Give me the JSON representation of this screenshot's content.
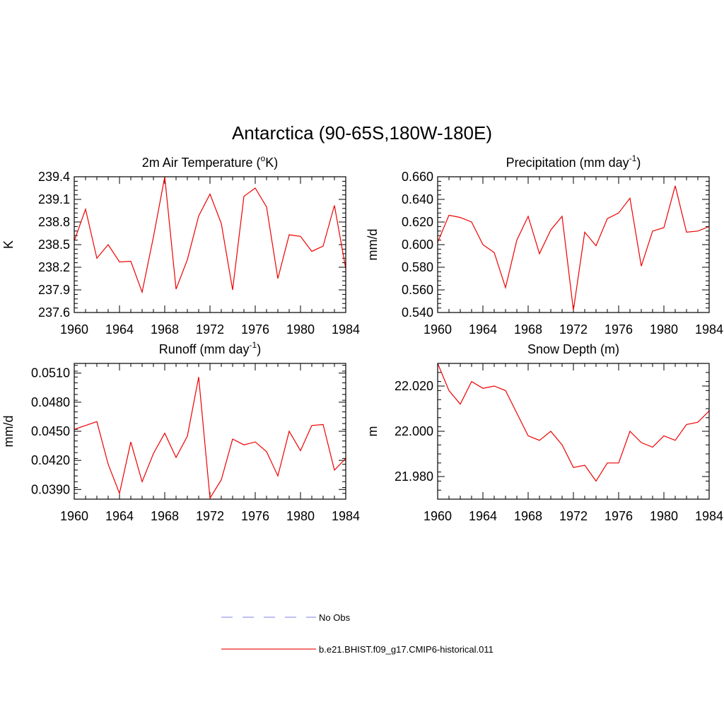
{
  "figure": {
    "title": "Antarctica (90-65S,180W-180E)"
  },
  "legend": {
    "entries": [
      {
        "label": "No Obs",
        "color": "#9999ee",
        "dashed": true
      },
      {
        "label": "b.e21.BHIST.f09_g17.CMIP6-historical.011",
        "color": "#ee2222",
        "dashed": false
      }
    ]
  },
  "chart_data": [
    {
      "type": "line",
      "title": "2m Air Temperature (oK)",
      "title_parts": {
        "base": "2m Air Temperature (",
        "sup": "o",
        "post": "K)"
      },
      "ylabel": "K",
      "xlim": [
        1960,
        1984
      ],
      "ylim": [
        237.6,
        239.4
      ],
      "xticks": [
        "1960",
        "1964",
        "1968",
        "1972",
        "1976",
        "1980",
        "1984"
      ],
      "yticks": [
        "237.6",
        "237.9",
        "238.2",
        "238.5",
        "238.8",
        "239.1",
        "239.4"
      ],
      "series": [
        {
          "color": "#ee0000",
          "x": [
            1960,
            1961,
            1962,
            1963,
            1964,
            1965,
            1966,
            1967,
            1968,
            1969,
            1970,
            1971,
            1972,
            1973,
            1974,
            1975,
            1976,
            1977,
            1978,
            1979,
            1980,
            1981,
            1982,
            1983,
            1984
          ],
          "y": [
            238.55,
            238.97,
            238.32,
            238.5,
            238.27,
            238.28,
            237.87,
            238.6,
            239.4,
            237.91,
            238.3,
            238.88,
            239.17,
            238.78,
            237.9,
            239.14,
            239.25,
            239.0,
            238.05,
            238.63,
            238.61,
            238.41,
            238.48,
            239.02,
            238.18
          ]
        }
      ]
    },
    {
      "type": "line",
      "title": "Precipitation (mm day-1)",
      "title_parts": {
        "base": "Precipitation (mm day",
        "sup": "-1",
        "post": ")"
      },
      "ylabel": "mm/d",
      "xlim": [
        1960,
        1984
      ],
      "ylim": [
        0.54,
        0.66
      ],
      "xticks": [
        "1960",
        "1964",
        "1968",
        "1972",
        "1976",
        "1980",
        "1984"
      ],
      "yticks": [
        "0.540",
        "0.560",
        "0.580",
        "0.600",
        "0.620",
        "0.640",
        "0.660"
      ],
      "series": [
        {
          "color": "#ee0000",
          "x": [
            1960,
            1961,
            1962,
            1963,
            1964,
            1965,
            1966,
            1967,
            1968,
            1969,
            1970,
            1971,
            1972,
            1973,
            1974,
            1975,
            1976,
            1977,
            1978,
            1979,
            1980,
            1981,
            1982,
            1983,
            1984
          ],
          "y": [
            0.602,
            0.626,
            0.624,
            0.62,
            0.6,
            0.593,
            0.562,
            0.604,
            0.625,
            0.592,
            0.613,
            0.625,
            0.542,
            0.611,
            0.599,
            0.623,
            0.628,
            0.641,
            0.581,
            0.612,
            0.615,
            0.652,
            0.611,
            0.612,
            0.616
          ]
        }
      ]
    },
    {
      "type": "line",
      "title": "Runoff (mm day-1)",
      "title_parts": {
        "base": "Runoff (mm day",
        "sup": "-1",
        "post": ")"
      },
      "ylabel": "mm/d",
      "xlim": [
        1960,
        1984
      ],
      "ylim": [
        0.038,
        0.052
      ],
      "xticks": [
        "1960",
        "1964",
        "1968",
        "1972",
        "1976",
        "1980",
        "1984"
      ],
      "yticks": [
        "0.0390",
        "0.0420",
        "0.0450",
        "0.0480",
        "0.0510"
      ],
      "series": [
        {
          "color": "#ee0000",
          "x": [
            1960,
            1961,
            1962,
            1963,
            1964,
            1965,
            1966,
            1967,
            1968,
            1969,
            1970,
            1971,
            1972,
            1973,
            1974,
            1975,
            1976,
            1977,
            1978,
            1979,
            1980,
            1981,
            1982,
            1983,
            1984
          ],
          "y": [
            0.0452,
            0.0456,
            0.046,
            0.0416,
            0.0386,
            0.0439,
            0.0398,
            0.0427,
            0.0448,
            0.0423,
            0.0445,
            0.0506,
            0.0381,
            0.04,
            0.0442,
            0.0436,
            0.0439,
            0.0429,
            0.0404,
            0.045,
            0.043,
            0.0456,
            0.0457,
            0.041,
            0.0422
          ]
        }
      ]
    },
    {
      "type": "line",
      "title": "Snow Depth (m)",
      "title_parts": {
        "base": "Snow Depth (m)",
        "sup": "",
        "post": ""
      },
      "ylabel": "m",
      "xlim": [
        1960,
        1984
      ],
      "ylim": [
        21.97,
        22.03
      ],
      "xticks": [
        "1960",
        "1964",
        "1968",
        "1972",
        "1976",
        "1980",
        "1984"
      ],
      "yticks": [
        "21.980",
        "22.000",
        "22.020"
      ],
      "series": [
        {
          "color": "#ee0000",
          "x": [
            1960,
            1961,
            1962,
            1963,
            1964,
            1965,
            1966,
            1967,
            1968,
            1969,
            1970,
            1971,
            1972,
            1973,
            1974,
            1975,
            1976,
            1977,
            1978,
            1979,
            1980,
            1981,
            1982,
            1983,
            1984
          ],
          "y": [
            22.03,
            22.018,
            22.012,
            22.022,
            22.019,
            22.02,
            22.018,
            22.008,
            21.998,
            21.996,
            22.0,
            21.994,
            21.984,
            21.985,
            21.978,
            21.986,
            21.986,
            22.0,
            21.995,
            21.993,
            21.998,
            21.996,
            22.003,
            22.004,
            22.009
          ]
        }
      ]
    }
  ]
}
